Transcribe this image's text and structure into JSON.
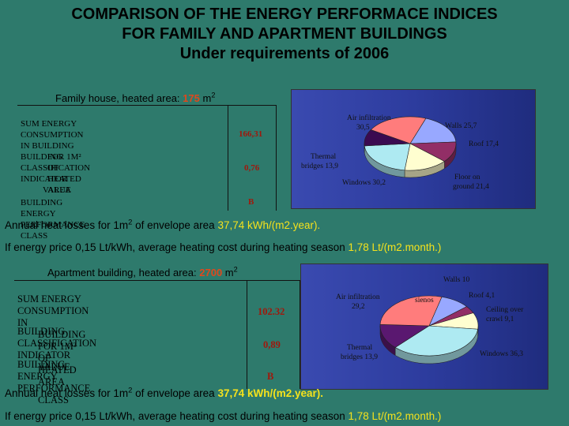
{
  "title": {
    "line1": "COMPARISON OF THE ENERGY PERFORMACE INDICES",
    "line2": "FOR FAMILY AND APARTMENT BUILDINGS",
    "line3": "Under requirements of 2006"
  },
  "family": {
    "heading_prefix": "Family house, heated area: ",
    "heading_value": "175",
    "heading_unit": " m",
    "heading_sup": "2",
    "rows": [
      {
        "label_line1": "SUM ENERGY CONSUMPTION IN BUILDING",
        "label_line2": "FOR 1M² OF HEATED AREA",
        "value": "166,31"
      },
      {
        "label_line1": "BUILDING CLASSIFICATION INDICATOR",
        "label_line2": "VALUE",
        "value": "0,76"
      },
      {
        "label_line1": "BUILDING ENERGY PERFORMANCE CLASS",
        "label_line2": "",
        "value": "B"
      }
    ],
    "pie": {
      "slices": [
        {
          "label": "Walls 25,7",
          "value": 25.7,
          "color": "#98a8ff"
        },
        {
          "label": "Roof 17,4",
          "value": 17.4,
          "color": "#922e66"
        },
        {
          "label": "Floor on ground 21,4",
          "value": 21.4,
          "color": "#fffed0"
        },
        {
          "label": "Windows 30,2",
          "value": 30.2,
          "color": "#aeeaf2"
        },
        {
          "label": "Thermal bridges 13,9",
          "value": 13.9,
          "color": "#3a0a50"
        },
        {
          "label": "Air infiltration 30,5",
          "value": 30.5,
          "color": "#ff7c7c"
        }
      ],
      "labels": {
        "air1": "Air infiltration",
        "air2": "30,5",
        "walls": "Walls 25,7",
        "roof": "Roof 17,4",
        "thermal1": "Thermal",
        "thermal2": "bridges 13,9",
        "floor1": "Floor on",
        "floor2": "ground 21,4",
        "windows": "Windows 30,2"
      }
    },
    "note1_prefix": "Annual heat losses for 1m",
    "note1_sup": "2",
    "note1_mid": " of envelope area ",
    "note1_value": "37,74 kWh/(m2.year).",
    "note2_prefix": "If energy price 0,15 Lt/kWh, average heating cost during heating season ",
    "note2_value": "1,78 Lt/(m2.month.)"
  },
  "apartment": {
    "heading_prefix": "Apartment building, heated area: ",
    "heading_value": "2700",
    "heading_unit": " m",
    "heading_sup": "2",
    "rows": [
      {
        "label_line1": "SUM ENERGY CONSUMPTION IN",
        "label_line2": "BUILDING FOR 1M² OF HEATED AREA",
        "value": "102.32"
      },
      {
        "label_line1": "BUILDING CLASSIFICATION INDICATOR",
        "label_line2": "VALUE",
        "value": "0,89"
      },
      {
        "label_line1": "BUILDING ENERGY PERFORMANCE",
        "label_line2": "CLASS",
        "value": "B"
      }
    ],
    "pie": {
      "slices": [
        {
          "label": "sienos",
          "value": 10,
          "color": "#98a8ff"
        },
        {
          "label": "Roof 4,1",
          "value": 4.1,
          "color": "#922e66"
        },
        {
          "label": "Ceiling over crawl 9,1",
          "value": 9.1,
          "color": "#fffed0"
        },
        {
          "label": "Windows 36,3",
          "value": 36.3,
          "color": "#aeeaf2"
        },
        {
          "label": "Thermal bridges 13,9",
          "value": 13.9,
          "color": "#5a1870"
        },
        {
          "label": "Air infiltration 29,2",
          "value": 29.2,
          "color": "#ff7c7c"
        }
      ],
      "labels": {
        "walls": "Walls 10",
        "air1": "Air infiltration",
        "air2": "29,2",
        "sienos": "sienos",
        "roof": "Roof 4,1",
        "ceiling1": "Ceiling over",
        "ceiling2": "crawl 9,1",
        "thermal1": "Thermal",
        "thermal2": "bridges 13,9",
        "windows": "Windows 36,3"
      }
    },
    "note1_prefix": "Annual heat losses for 1m",
    "note1_sup": "2",
    "note1_mid": " of envelope area ",
    "note1_value": "37,74 kWh/(m2.year).",
    "note2_prefix": "If energy price 0,15 Lt/kWh, average heating cost during heating season ",
    "note2_value": "1,78 Lt/(m2.month.)"
  }
}
